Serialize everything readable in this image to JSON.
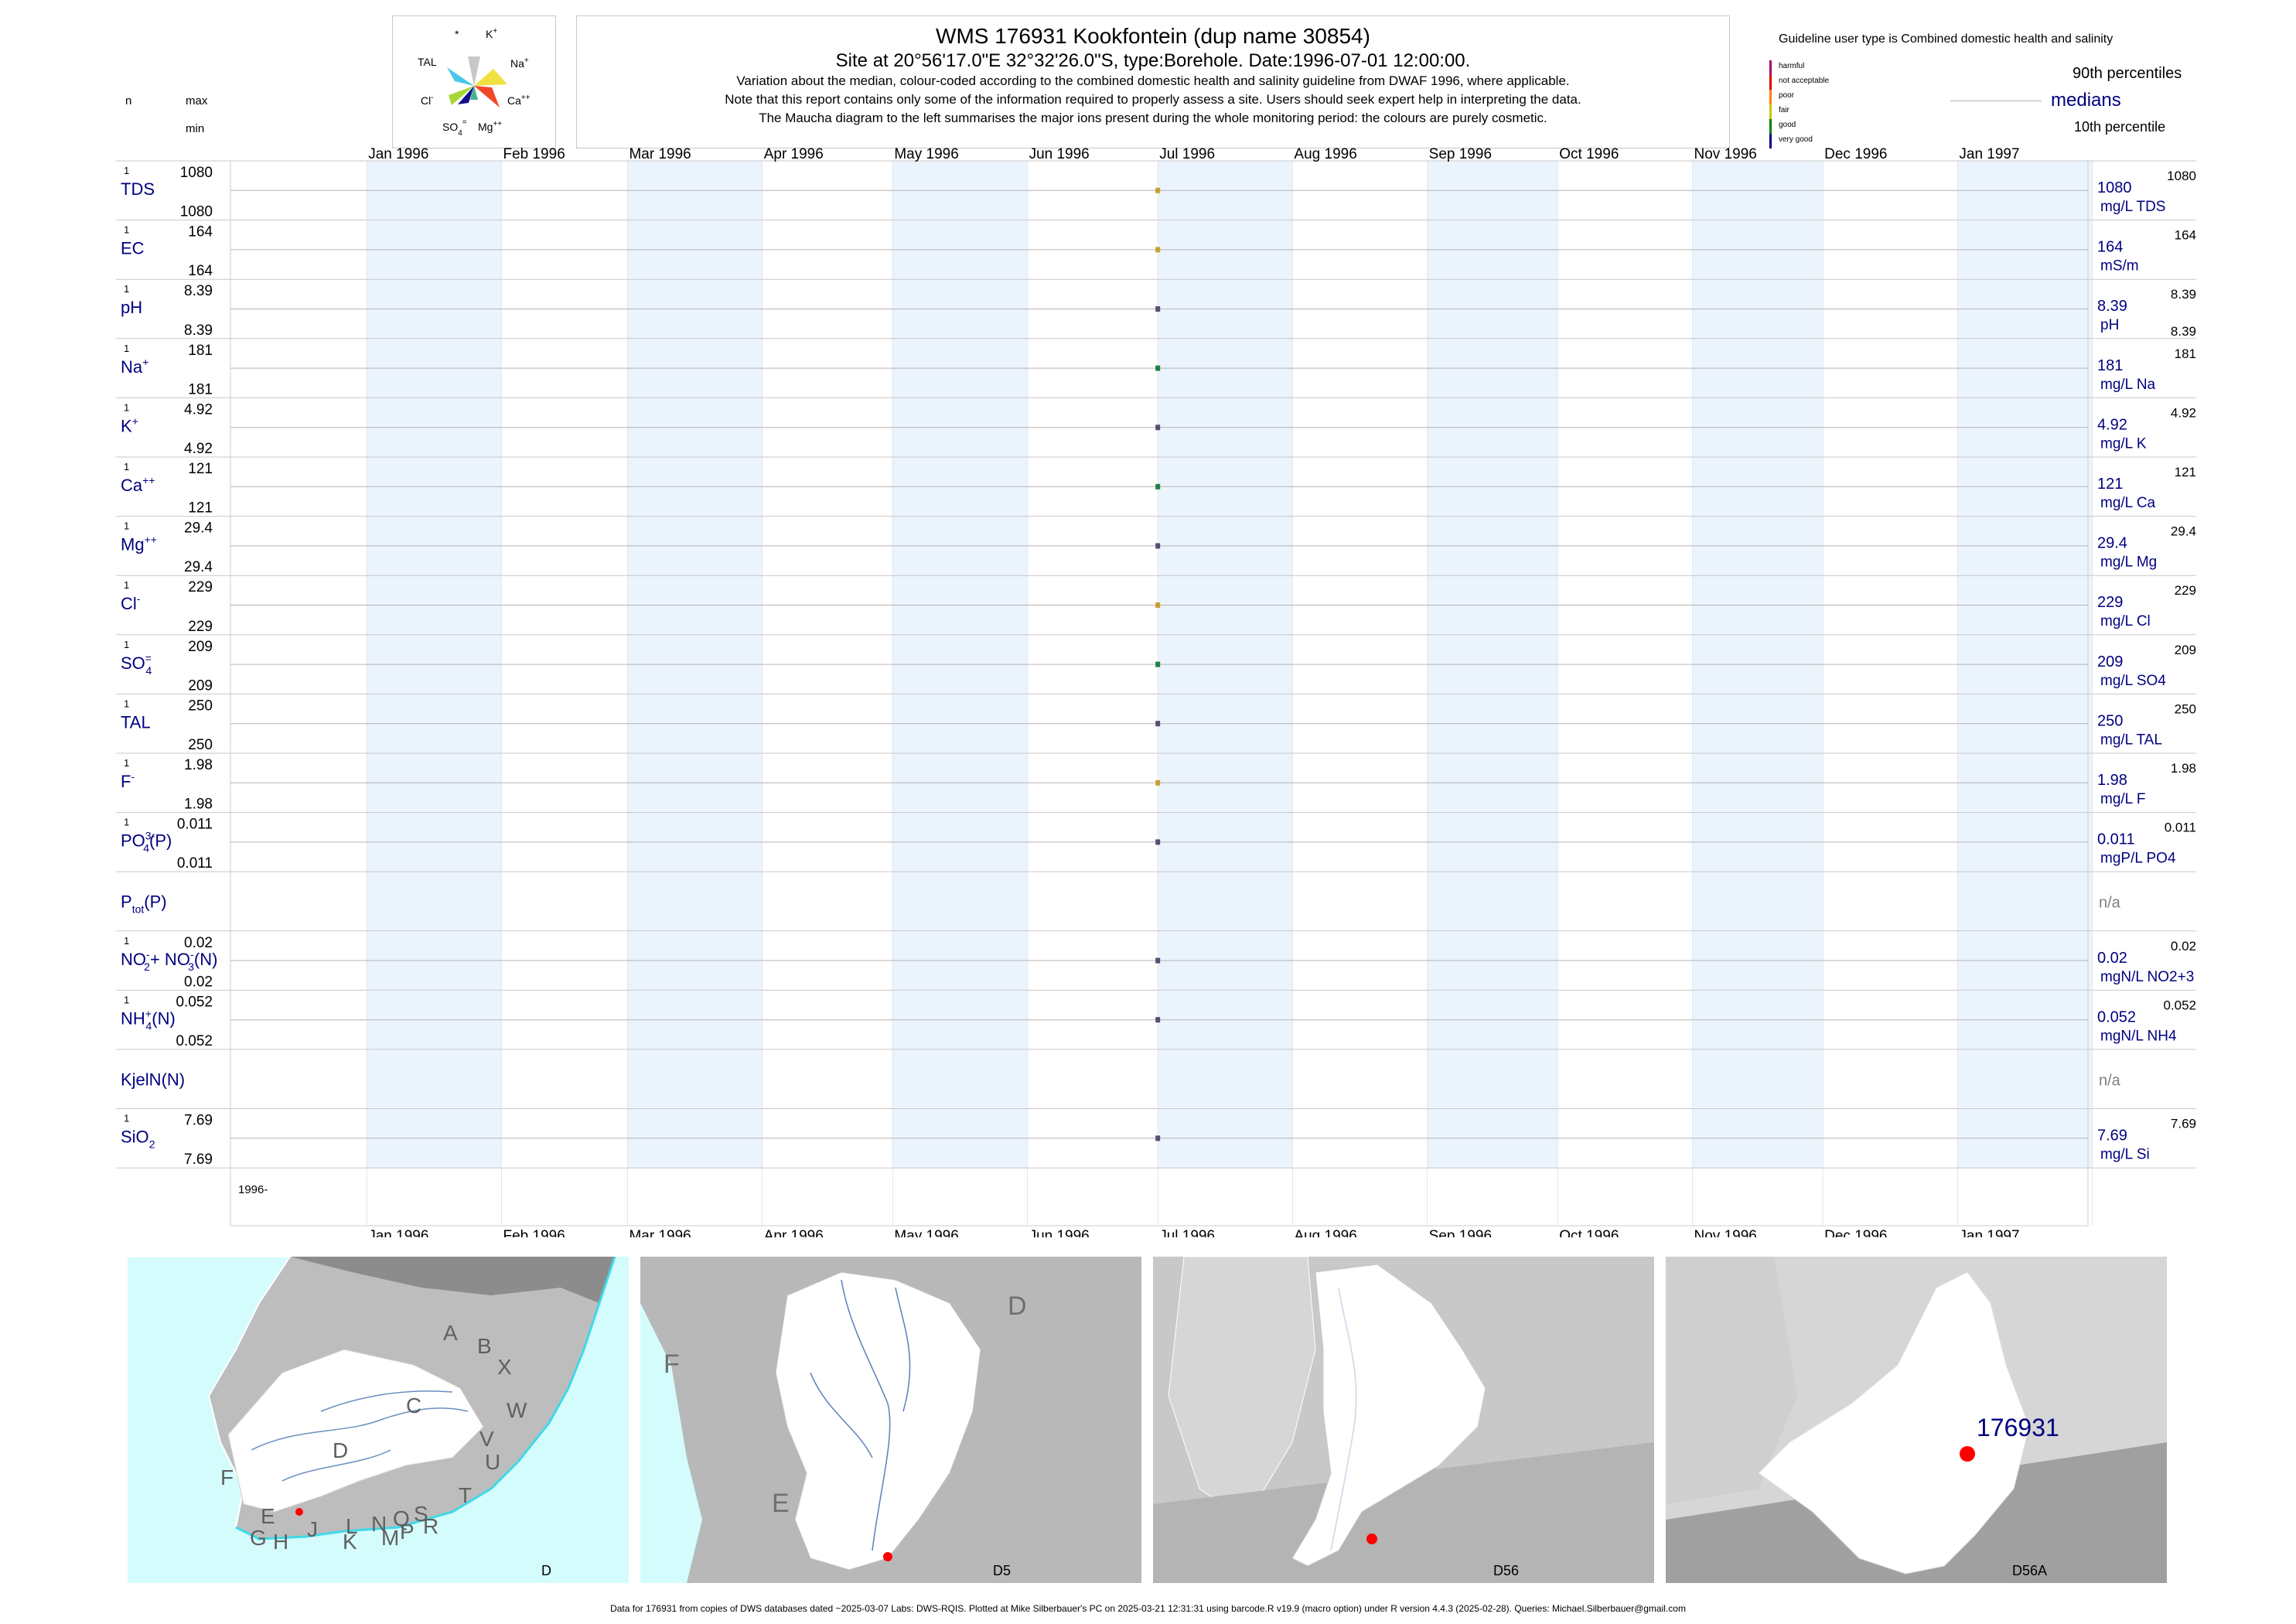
{
  "header": {
    "title": "WMS 176931  Kookfontein (dup name 30854)",
    "site_line": "Site at 20°56'17.0\"E 32°32'26.0\"S, type:Borehole. Date:1996-07-01 12:00:00.",
    "note1": "Variation about the median,  colour-coded according to the combined domestic health and salinity guideline from DWAF 1996, where applicable.",
    "note2": "Note that this report contains only some of the information required to properly assess a site. Users should seek expert help in interpreting the data.",
    "note3": "The Maucha diagram to the left summarises the major ions present during the whole monitoring period: the colours are purely cosmetic."
  },
  "col_labels": {
    "n": "n",
    "max": "max",
    "min": "min"
  },
  "maucha": {
    "labels": {
      "star": "*",
      "k": "K",
      "k_sup": "+",
      "tal": "TAL",
      "na": "Na",
      "na_sup": "+",
      "cl": "Cl",
      "cl_sup": "-",
      "ca": "Ca",
      "ca_sup": "++",
      "so4": "SO",
      "so4_sub": "4",
      "so4_sup": "=",
      "mg": "Mg",
      "mg_sup": "++"
    },
    "colors": {
      "tal": "#48c8e8",
      "k": "#c8c8c8",
      "na": "#f0e040",
      "ca": "#f04828",
      "cl": "#a8d838",
      "so4": "#10108a",
      "mg": "#48b090"
    }
  },
  "legend": {
    "guideline_text": "Guideline user type is Combined domestic health and salinity",
    "categories": [
      {
        "label": "harmful",
        "color": "#aa0066"
      },
      {
        "label": "not acceptable",
        "color": "#e00000"
      },
      {
        "label": "poor",
        "color": "#ff8000"
      },
      {
        "label": "fair",
        "color": "#c8c800"
      },
      {
        "label": "good",
        "color": "#008000"
      },
      {
        "label": "very good",
        "color": "#000088"
      }
    ],
    "p90": "90th percentiles",
    "medians": "medians",
    "p10": "10th percentile"
  },
  "months": [
    "Jan 1996",
    "Feb 1996",
    "Mar 1996",
    "Apr 1996",
    "May 1996",
    "Jun 1996",
    "Jul 1996",
    "Aug 1996",
    "Sep 1996",
    "Oct 1996",
    "Nov 1996",
    "Dec 1996",
    "Jan 1997"
  ],
  "year_label": "1996-",
  "chart_data": {
    "type": "scatter",
    "x_range": [
      "1995-12-01",
      "1997-01-31"
    ],
    "sample_date": "1996-07-01",
    "series": [
      {
        "label": "TDS",
        "n": "1",
        "max": "1080",
        "min": "1080",
        "median": "1080",
        "unit": "mg/L TDS",
        "p90": "1080",
        "p10": "",
        "value": 1080,
        "color": "#c8a030"
      },
      {
        "label": "EC",
        "n": "1",
        "max": "164",
        "min": "164",
        "median": "164",
        "unit": "mS/m",
        "p90": "164",
        "p10": "",
        "value": 164,
        "color": "#c8a030"
      },
      {
        "label": "pH",
        "n": "1",
        "max": "8.39",
        "min": "8.39",
        "median": "8.39",
        "unit": "pH",
        "p90": "8.39",
        "p10": "8.39",
        "value": 8.39,
        "color": "#505070"
      },
      {
        "label": "Na",
        "sup": "+",
        "n": "1",
        "max": "181",
        "min": "181",
        "median": "181",
        "unit": "mg/L Na",
        "p90": "181",
        "p10": "",
        "value": 181,
        "color": "#208040"
      },
      {
        "label": "K",
        "sup": "+",
        "n": "1",
        "max": "4.92",
        "min": "4.92",
        "median": "4.92",
        "unit": "mg/L K",
        "p90": "4.92",
        "p10": "",
        "value": 4.92,
        "color": "#505070"
      },
      {
        "label": "Ca",
        "sup": "++",
        "n": "1",
        "max": "121",
        "min": "121",
        "median": "121",
        "unit": "mg/L Ca",
        "p90": "121",
        "p10": "",
        "value": 121,
        "color": "#208040"
      },
      {
        "label": "Mg",
        "sup": "++",
        "n": "1",
        "max": "29.4",
        "min": "29.4",
        "median": "29.4",
        "unit": "mg/L Mg",
        "p90": "29.4",
        "p10": "",
        "value": 29.4,
        "color": "#505070"
      },
      {
        "label": "Cl",
        "sup": "-",
        "n": "1",
        "max": "229",
        "min": "229",
        "median": "229",
        "unit": "mg/L Cl",
        "p90": "229",
        "p10": "",
        "value": 229,
        "color": "#c8a030"
      },
      {
        "label": "SO",
        "sub": "4",
        "sup": "=",
        "n": "1",
        "max": "209",
        "min": "209",
        "median": "209",
        "unit": "mg/L SO4",
        "p90": "209",
        "p10": "",
        "value": 209,
        "color": "#208040"
      },
      {
        "label": "TAL",
        "n": "1",
        "max": "250",
        "min": "250",
        "median": "250",
        "unit": "mg/L TAL",
        "p90": "250",
        "p10": "",
        "value": 250,
        "color": "#505070"
      },
      {
        "label": "F",
        "sup": "-",
        "n": "1",
        "max": "1.98",
        "min": "1.98",
        "median": "1.98",
        "unit": "mg/L F",
        "p90": "1.98",
        "p10": "",
        "value": 1.98,
        "color": "#c8a030"
      },
      {
        "label": "PO",
        "sub": "4",
        "sup": "3-",
        "after": "(P)",
        "n": "1",
        "max": "0.011",
        "min": "0.011",
        "median": "0.011",
        "unit": "mgP/L PO4",
        "p90": "0.011",
        "p10": "",
        "value": 0.011,
        "color": "#505070"
      },
      {
        "label": "P",
        "sub": "tot",
        "after": "(P)",
        "n": "",
        "max": "",
        "min": "",
        "median": "n/a",
        "unit": "",
        "p90": "",
        "p10": "",
        "value": null,
        "color": "#505070"
      },
      {
        "label": "NO",
        "sub": "2",
        "sup": "-",
        "after": "+ NO",
        "sub2": "3",
        "sup2": "-",
        "after2": "(N)",
        "n": "1",
        "max": "0.02",
        "min": "0.02",
        "median": "0.02",
        "unit": "mgN/L NO2+3",
        "p90": "0.02",
        "p10": "",
        "value": 0.02,
        "color": "#505070"
      },
      {
        "label": "NH",
        "sub": "4",
        "sup": "+",
        "after": "(N)",
        "n": "1",
        "max": "0.052",
        "min": "0.052",
        "median": "0.052",
        "unit": "mgN/L NH4",
        "p90": "0.052",
        "p10": "",
        "value": 0.052,
        "color": "#505070"
      },
      {
        "label": "KjelN(N)",
        "n": "",
        "max": "",
        "min": "",
        "median": "n/a",
        "unit": "",
        "p90": "",
        "p10": "",
        "value": null,
        "color": "#505070"
      },
      {
        "label": "SiO",
        "sub": "2",
        "n": "1",
        "max": "7.69",
        "min": "7.69",
        "median": "7.69",
        "unit": "mg/L Si",
        "p90": "7.69",
        "p10": "",
        "value": 7.69,
        "color": "#505070"
      }
    ]
  },
  "maps": [
    {
      "caption": "D",
      "labels": [
        "A",
        "B",
        "X",
        "W",
        "C",
        "V",
        "U",
        "T",
        "D",
        "F",
        "E",
        "G",
        "H",
        "J",
        "K",
        "L",
        "M",
        "N",
        "P",
        "Q",
        "R",
        "S"
      ]
    },
    {
      "caption": "D5",
      "labels": [
        "D",
        "F",
        "E"
      ]
    },
    {
      "caption": "D56",
      "labels": []
    },
    {
      "caption": "D56A",
      "labels": [
        "176931"
      ]
    }
  ],
  "footer": "Data for 176931 from copies of DWS databases dated ~2025-03-07 Labs: DWS-RQIS. Plotted at Mike Silberbauer's PC on 2025-03-21 12:31:31 using barcode.R v19.9 (macro option) under R version 4.4.3 (2025-02-28). Queries: Michael.Silberbauer@gmail.com"
}
